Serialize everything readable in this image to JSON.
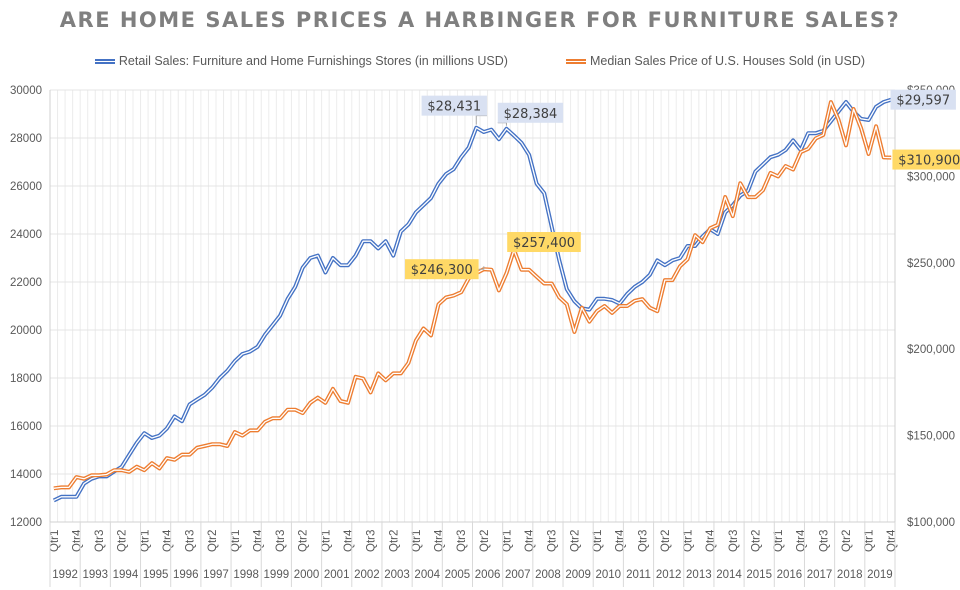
{
  "chart_data": {
    "type": "line",
    "title": "ARE HOME SALES PRICES A HARBINGER FOR FURNITURE SALES?",
    "legend_position": "top",
    "grid": true,
    "years": [
      "1992",
      "1993",
      "1994",
      "1995",
      "1996",
      "1997",
      "1998",
      "1999",
      "2000",
      "2001",
      "2002",
      "2003",
      "2004",
      "2005",
      "2006",
      "2007",
      "2008",
      "2009",
      "2010",
      "2011",
      "2012",
      "2013",
      "2014",
      "2015",
      "2016",
      "2017",
      "2018",
      "2019"
    ],
    "quarter_tick_labels": [
      "Qtr1",
      "Qtr4",
      "Qtr3",
      "Qtr2"
    ],
    "x_label_format": "Qtr",
    "y_left": {
      "label": "",
      "ylim": [
        12000,
        30000
      ],
      "ticks": [
        "12000",
        "14000",
        "16000",
        "18000",
        "20000",
        "22000",
        "24000",
        "26000",
        "28000",
        "30000"
      ]
    },
    "y_right": {
      "label": "",
      "ylim": [
        100000,
        350000
      ],
      "ticks": [
        "$100,000",
        "$150,000",
        "$200,000",
        "$250,000",
        "$300,000",
        "$350,000"
      ]
    },
    "series": [
      {
        "name": "Retail Sales: Furniture and Home Furnishings Stores (in millions USD)",
        "axis": "left",
        "color": "#4472c4",
        "values": [
          12900,
          13050,
          13050,
          13050,
          13600,
          13800,
          13900,
          13900,
          14100,
          14300,
          14800,
          15300,
          15700,
          15500,
          15600,
          15900,
          16400,
          16200,
          16900,
          17100,
          17300,
          17600,
          18000,
          18300,
          18700,
          19000,
          19100,
          19300,
          19800,
          20200,
          20600,
          21300,
          21800,
          22600,
          23000,
          23100,
          22400,
          23000,
          22700,
          22700,
          23100,
          23700,
          23700,
          23400,
          23700,
          23100,
          24100,
          24400,
          24900,
          25200,
          25500,
          26100,
          26500,
          26700,
          27200,
          27600,
          28431,
          28250,
          28350,
          27950,
          28384,
          28100,
          27800,
          27300,
          26100,
          25700,
          24300,
          22900,
          21700,
          21200,
          20900,
          20850,
          21300,
          21300,
          21250,
          21100,
          21500,
          21800,
          22000,
          22300,
          22900,
          22700,
          22900,
          23000,
          23500,
          23500,
          23900,
          24200,
          24000,
          24900,
          25200,
          25600,
          25800,
          26600,
          26900,
          27200,
          27300,
          27500,
          27900,
          27500,
          28200,
          28200,
          28300,
          28700,
          29100,
          29500,
          29100,
          28800,
          28750,
          29300,
          29500,
          29597
        ],
        "data_labels": [
          {
            "index": 56,
            "text": "$28,431"
          },
          {
            "index": 60,
            "text": "$28,384"
          },
          {
            "index": 111,
            "text": "$29,597"
          }
        ]
      },
      {
        "name": "Median Sales Price of U.S. Houses Sold (in USD)",
        "axis": "right",
        "color": "#ed7d31",
        "values": [
          119500,
          120000,
          120000,
          126000,
          125000,
          127000,
          127000,
          127500,
          130000,
          130000,
          129000,
          132000,
          130000,
          134000,
          131000,
          137000,
          136000,
          139000,
          139000,
          143000,
          144000,
          145000,
          145000,
          144000,
          152000,
          150000,
          153000,
          153000,
          158000,
          160000,
          160000,
          165000,
          165000,
          163000,
          169000,
          172000,
          169000,
          177000,
          170000,
          169000,
          184000,
          183000,
          175000,
          186000,
          182000,
          186000,
          186000,
          192000,
          205000,
          212000,
          208000,
          226000,
          230000,
          231000,
          233000,
          241000,
          244000,
          246300,
          246000,
          234000,
          244000,
          257400,
          246000,
          246000,
          242000,
          238000,
          238000,
          230000,
          226000,
          210000,
          224000,
          216000,
          222000,
          225000,
          221000,
          225000,
          225000,
          228000,
          229000,
          224000,
          222000,
          240000,
          240000,
          248000,
          252000,
          266000,
          262000,
          270000,
          272000,
          288000,
          277000,
          296000,
          288000,
          288000,
          292000,
          302000,
          300000,
          306000,
          304000,
          314000,
          316000,
          322000,
          324000,
          343000,
          333000,
          318000,
          339000,
          328000,
          313000,
          329000,
          311000,
          310900
        ],
        "data_labels": [
          {
            "index": 57,
            "text": "$246,300"
          },
          {
            "index": 61,
            "text": "$257,400"
          },
          {
            "index": 111,
            "text": "$310,900"
          }
        ]
      }
    ]
  }
}
